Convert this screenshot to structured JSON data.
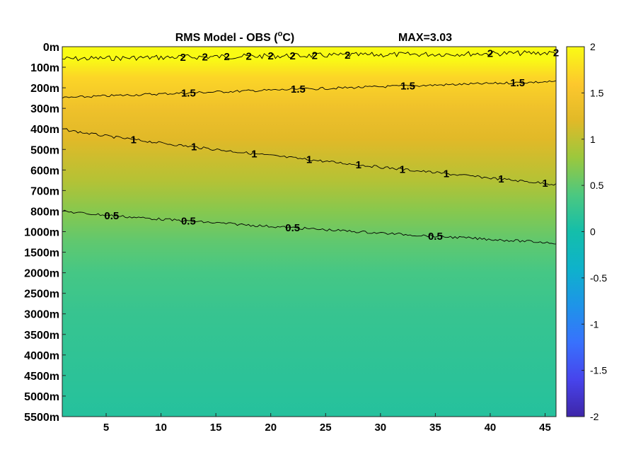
{
  "chart_data": {
    "type": "heatmap",
    "title_parts": {
      "lead": "RMS Model - OBS (",
      "sup": "o",
      "unit": "C)"
    },
    "max_label": "MAX=3.03",
    "x_ticks": [
      "5",
      "10",
      "15",
      "20",
      "25",
      "30",
      "35",
      "40",
      "45"
    ],
    "x_tick_values": [
      5,
      10,
      15,
      20,
      25,
      30,
      35,
      40,
      45
    ],
    "xlim": [
      1,
      46
    ],
    "y_ticks": [
      "0m",
      "100m",
      "200m",
      "300m",
      "400m",
      "500m",
      "600m",
      "700m",
      "800m",
      "1000m",
      "1500m",
      "2000m",
      "2500m",
      "3000m",
      "3500m",
      "4000m",
      "4500m",
      "5000m",
      "5500m"
    ],
    "colorbar": {
      "ticks": [
        "2",
        "1.5",
        "1",
        "0.5",
        "0",
        "-0.5",
        "-1",
        "-1.5",
        "-2"
      ],
      "tick_values": [
        2,
        1.5,
        1,
        0.5,
        0,
        -0.5,
        -1,
        -1.5,
        -2
      ],
      "clim": [
        -2,
        2
      ],
      "colormap": "parula"
    },
    "contours": [
      {
        "level": 2,
        "label": "2",
        "depth_index": [
          0.6,
          0.3
        ],
        "label_x": [
          12,
          14,
          16,
          18,
          20,
          22,
          24,
          27,
          40,
          46
        ]
      },
      {
        "level": 1.5,
        "label": "1.5",
        "depth_index": [
          2.5,
          1.7
        ],
        "label_x": [
          12.5,
          22.5,
          32.5,
          42.5
        ]
      },
      {
        "level": 1,
        "label": "1",
        "depth_index": [
          4.0,
          6.7
        ],
        "label_x": [
          7.5,
          13,
          18.5,
          23.5,
          28,
          32,
          36,
          41,
          45
        ]
      },
      {
        "level": 0.5,
        "label": "0.5",
        "depth_index": [
          8.0,
          9.55
        ],
        "label_x": [
          5.5,
          12.5,
          22,
          35
        ]
      }
    ],
    "field_profile": [
      {
        "depth_index": 0,
        "value": 2.0
      },
      {
        "depth_index": 0.6,
        "value": 2.0
      },
      {
        "depth_index": 1.5,
        "value": 1.7
      },
      {
        "depth_index": 3,
        "value": 1.4
      },
      {
        "depth_index": 4.5,
        "value": 1.2
      },
      {
        "depth_index": 6.5,
        "value": 0.95
      },
      {
        "depth_index": 8,
        "value": 0.7
      },
      {
        "depth_index": 9.5,
        "value": 0.5
      },
      {
        "depth_index": 11,
        "value": 0.35
      },
      {
        "depth_index": 13,
        "value": 0.25
      },
      {
        "depth_index": 15,
        "value": 0.2
      },
      {
        "depth_index": 18,
        "value": 0.12
      }
    ]
  }
}
